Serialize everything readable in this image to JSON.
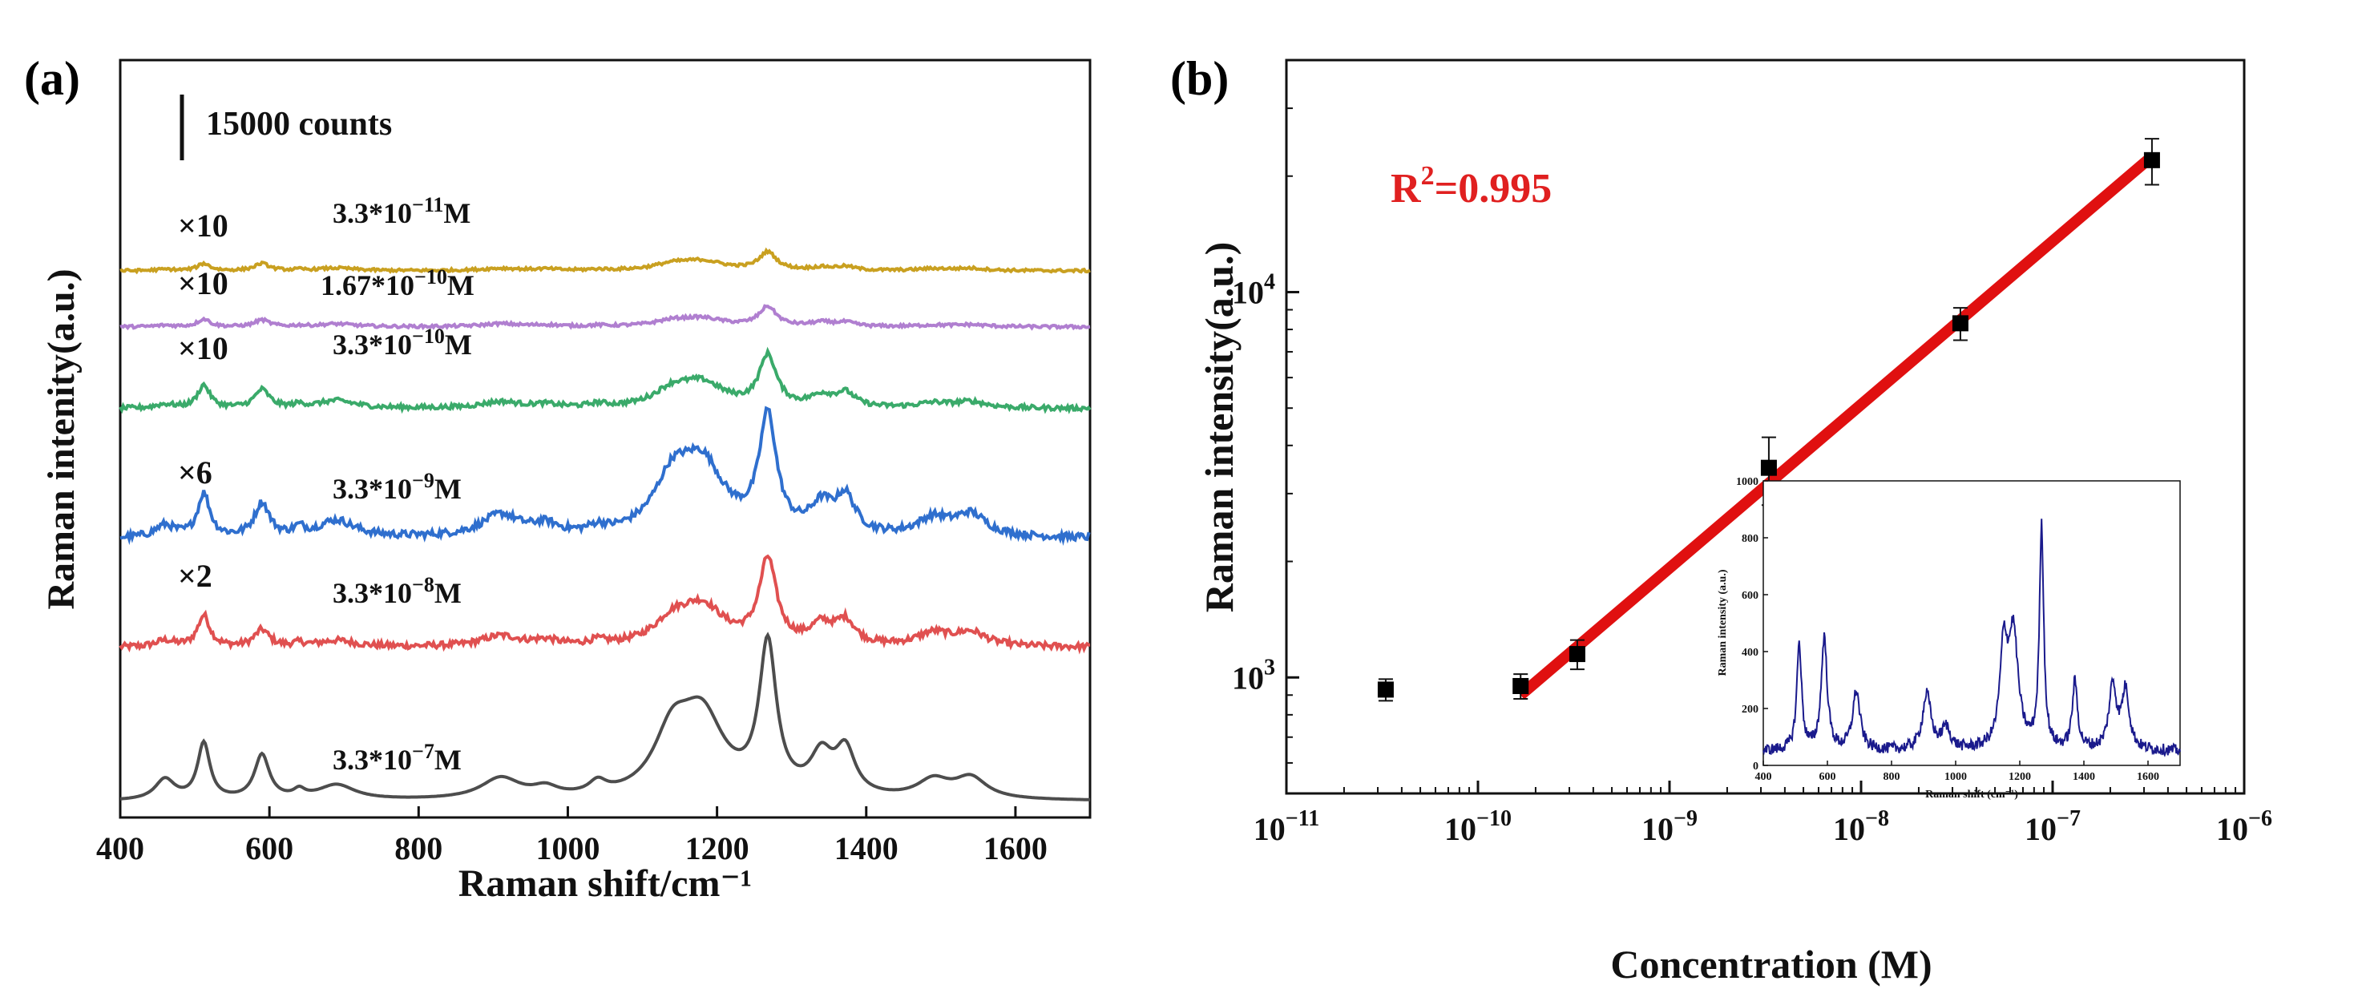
{
  "panel_a": {
    "tag": "(a)",
    "scale_bar_label": "15000 counts",
    "colors": [
      "#4d4d4d",
      "#e05050",
      "#2f6fce",
      "#3aaa6a",
      "#b07fd0",
      "#c9a020"
    ]
  },
  "panel_b": {
    "tag": "(b)",
    "r2_prefix": "R",
    "r2_sup": "2",
    "r2_value": "=0.995",
    "r2_color": "#e02020",
    "fit_color": "#e01010",
    "marker_color": "#000000",
    "inset_color": "#1a1a8c"
  },
  "chart_data": [
    {
      "type": "line",
      "title": "(a)",
      "xlabel": "Raman shift/cm⁻¹",
      "ylabel": "Raman intenity(a.u.)",
      "xlim": [
        400,
        1700
      ],
      "xticks": [
        400,
        600,
        800,
        1000,
        1200,
        1400,
        1600
      ],
      "scale_bar": "15000 counts",
      "peaks_cm-1": [
        460,
        512,
        590,
        640,
        690,
        910,
        970,
        1040,
        1140,
        1180,
        1268,
        1340,
        1372,
        1490,
        1540
      ],
      "series": [
        {
          "name": "3.3*10⁻⁷M",
          "multiplier": "",
          "conc_mantissa": "3.3*10",
          "conc_exp": "−7",
          "color": "#4d4d4d",
          "peak_heights": [
            0.14,
            0.38,
            0.3,
            0.05,
            0.1,
            0.14,
            0.06,
            0.08,
            0.38,
            0.52,
            1.0,
            0.26,
            0.3,
            0.12,
            0.14
          ]
        },
        {
          "name": "3.3*10⁻⁸M",
          "multiplier": "×2",
          "conc_mantissa": "3.3*10",
          "conc_exp": "−8",
          "color": "#e05050",
          "peak_heights": [
            0.06,
            0.3,
            0.16,
            0.03,
            0.06,
            0.1,
            0.05,
            0.04,
            0.2,
            0.36,
            0.8,
            0.18,
            0.22,
            0.12,
            0.13
          ]
        },
        {
          "name": "3.3*10⁻⁹M",
          "multiplier": "×6",
          "conc_mantissa": "3.3*10",
          "conc_exp": "−9",
          "color": "#2f6fce",
          "peak_heights": [
            0.1,
            0.36,
            0.28,
            0.06,
            0.14,
            0.18,
            0.08,
            0.05,
            0.4,
            0.56,
            0.95,
            0.22,
            0.3,
            0.14,
            0.18
          ]
        },
        {
          "name": "3.3*10⁻¹⁰M",
          "multiplier": "×10",
          "conc_mantissa": "3.3*10",
          "conc_exp": "−10",
          "color": "#3aaa6a",
          "peak_heights": [
            0.05,
            0.3,
            0.24,
            0.04,
            0.1,
            0.08,
            0.04,
            0.04,
            0.2,
            0.3,
            0.66,
            0.14,
            0.18,
            0.06,
            0.08
          ]
        },
        {
          "name": "1.67*10⁻¹⁰M",
          "multiplier": "×10",
          "conc_mantissa": "1.67*10",
          "conc_exp": "−10",
          "color": "#b07fd0",
          "peak_heights": [
            0.03,
            0.16,
            0.14,
            0.02,
            0.06,
            0.06,
            0.03,
            0.02,
            0.1,
            0.16,
            0.4,
            0.08,
            0.08,
            0.03,
            0.04
          ]
        },
        {
          "name": "3.3*10⁻¹¹M",
          "multiplier": "×10",
          "conc_mantissa": "3.3*10",
          "conc_exp": "−11",
          "color": "#c9a020",
          "peak_heights": [
            0.03,
            0.16,
            0.16,
            0.02,
            0.06,
            0.05,
            0.03,
            0.02,
            0.12,
            0.2,
            0.4,
            0.06,
            0.08,
            0.04,
            0.05
          ]
        }
      ]
    },
    {
      "type": "scatter",
      "title": "(b)",
      "xlabel": "Concentration (M)",
      "ylabel": "Raman intensity(a.u.)",
      "xscale": "log",
      "yscale": "log",
      "xlim": [
        1e-11,
        1e-06
      ],
      "ylim": [
        500,
        40000
      ],
      "x_tick_exponents": [
        "−11",
        "−10",
        "−9",
        "−8",
        "−7",
        "−6"
      ],
      "y_tick_exponents": [
        "3",
        "4"
      ],
      "tick_base": "10",
      "annotation": "R²=0.995",
      "points": [
        {
          "x": 3.3e-11,
          "y": 930,
          "err": 60
        },
        {
          "x": 1.67e-10,
          "y": 950,
          "err": 70
        },
        {
          "x": 3.3e-10,
          "y": 1150,
          "err": 100
        },
        {
          "x": 3.3e-09,
          "y": 3500,
          "err": 700
        },
        {
          "x": 3.3e-08,
          "y": 8300,
          "err": 800
        },
        {
          "x": 3.3e-07,
          "y": 22000,
          "err": 3000
        }
      ],
      "fit": {
        "x": [
          1.67e-10,
          3.3e-07
        ],
        "y": [
          900,
          22500
        ]
      },
      "inset": {
        "type": "line",
        "xlabel": "Raman shift (cm⁻¹)",
        "ylabel": "Raman intensity (a.u.)",
        "xlim": [
          400,
          1700
        ],
        "ylim": [
          0,
          1000
        ],
        "xticks": [
          400,
          600,
          800,
          1000,
          1200,
          1400,
          1600
        ],
        "yticks": [
          0,
          200,
          400,
          600,
          800,
          1000
        ],
        "baseline": 50,
        "peaks_cm-1": [
          512,
          590,
          690,
          910,
          970,
          1150,
          1180,
          1268,
          1372,
          1490,
          1530
        ],
        "peak_heights": [
          400,
          420,
          230,
          220,
          100,
          360,
          420,
          800,
          260,
          250,
          230
        ]
      }
    }
  ]
}
